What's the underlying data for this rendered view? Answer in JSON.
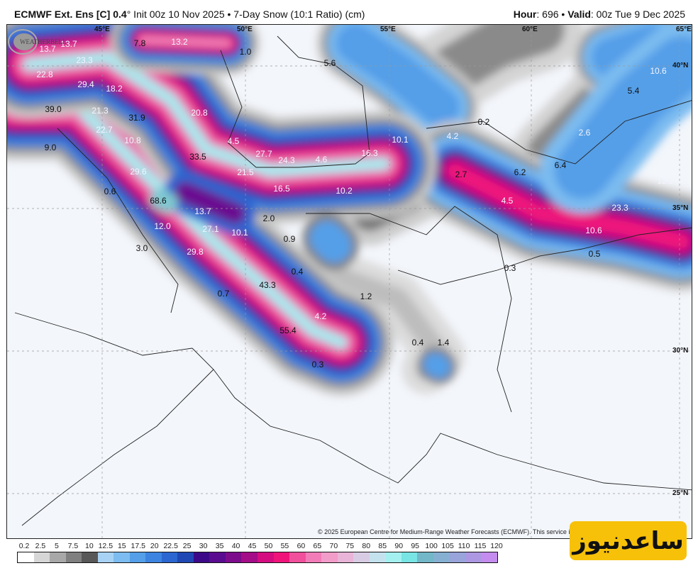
{
  "header": {
    "model": "ECMWF Ext. Ens [C] 0.4",
    "deg": "°",
    "init": " Init 00z 10 Nov 2025 • 7-Day Snow (10:1 Ratio) (cm)",
    "hour_label": "Hour",
    "hour_value": ": 696 • ",
    "valid_label": "Valid",
    "valid_value": ": 00z Tue 9 Dec 2025"
  },
  "axes": {
    "lon": [
      "45°E",
      "50°E",
      "55°E",
      "60°E",
      "65°E"
    ],
    "lat": [
      "40°N",
      "35°N",
      "30°N",
      "25°N"
    ]
  },
  "map_values": [
    "13.7",
    "13.7",
    "23.3",
    "13.2",
    "7.8",
    "1.0",
    "22.8",
    "29.4",
    "18.2",
    "39.0",
    "21.3",
    "31.9",
    "20.8",
    "22.7",
    "10.8",
    "9.0",
    "4.5",
    "33.5",
    "27.7",
    "24.3",
    "4.6",
    "16.3",
    "10.1",
    "5.6",
    "29.6",
    "21.5",
    "16.5",
    "10.2",
    "0.6",
    "68.6",
    "13.7",
    "2.0",
    "12.0",
    "27.1",
    "10.1",
    "0.9",
    "3.0",
    "29.8",
    "0.4",
    "43.3",
    "0.7",
    "1.2",
    "4.2",
    "55.4",
    "0.3",
    "0.4",
    "1.4",
    "0.2",
    "4.2",
    "2.7",
    "6.2",
    "6.4",
    "2.6",
    "5.4",
    "10.6",
    "12.2",
    "4.5",
    "23.3",
    "10.6",
    "0.5",
    "0.3"
  ],
  "copyright": "© 2025 European Centre for Medium-Range Weather Forecasts (ECMWF). This service is b",
  "colorbar": {
    "labels": [
      "0.2",
      "2.5",
      "5",
      "7.5",
      "10",
      "12.5",
      "15",
      "17.5",
      "20",
      "22.5",
      "25",
      "30",
      "35",
      "40",
      "45",
      "50",
      "55",
      "60",
      "65",
      "70",
      "75",
      "80",
      "85",
      "90",
      "95",
      "100",
      "105",
      "110",
      "115",
      "120"
    ],
    "colors": [
      "#ffffff",
      "#d6d6d6",
      "#a8a8a8",
      "#808080",
      "#585858",
      "#a8d2f4",
      "#7cbcf0",
      "#549fe8",
      "#3c84e0",
      "#2c66d0",
      "#1f48b4",
      "#3c0a88",
      "#5a0c90",
      "#7c0c8c",
      "#a40c88",
      "#d40c80",
      "#f0147a",
      "#f0509c",
      "#f27cb8",
      "#f29cca",
      "#e8b4d8",
      "#d8cce4",
      "#c4e2ee",
      "#a4f0f0",
      "#78e4e4",
      "#72b8c8",
      "#86b0d2",
      "#98a4da",
      "#ac98e2",
      "#c48cee"
    ]
  },
  "logos": {
    "weatherbell": "WeatherBELL",
    "saednews": "ساعدنیوز"
  }
}
